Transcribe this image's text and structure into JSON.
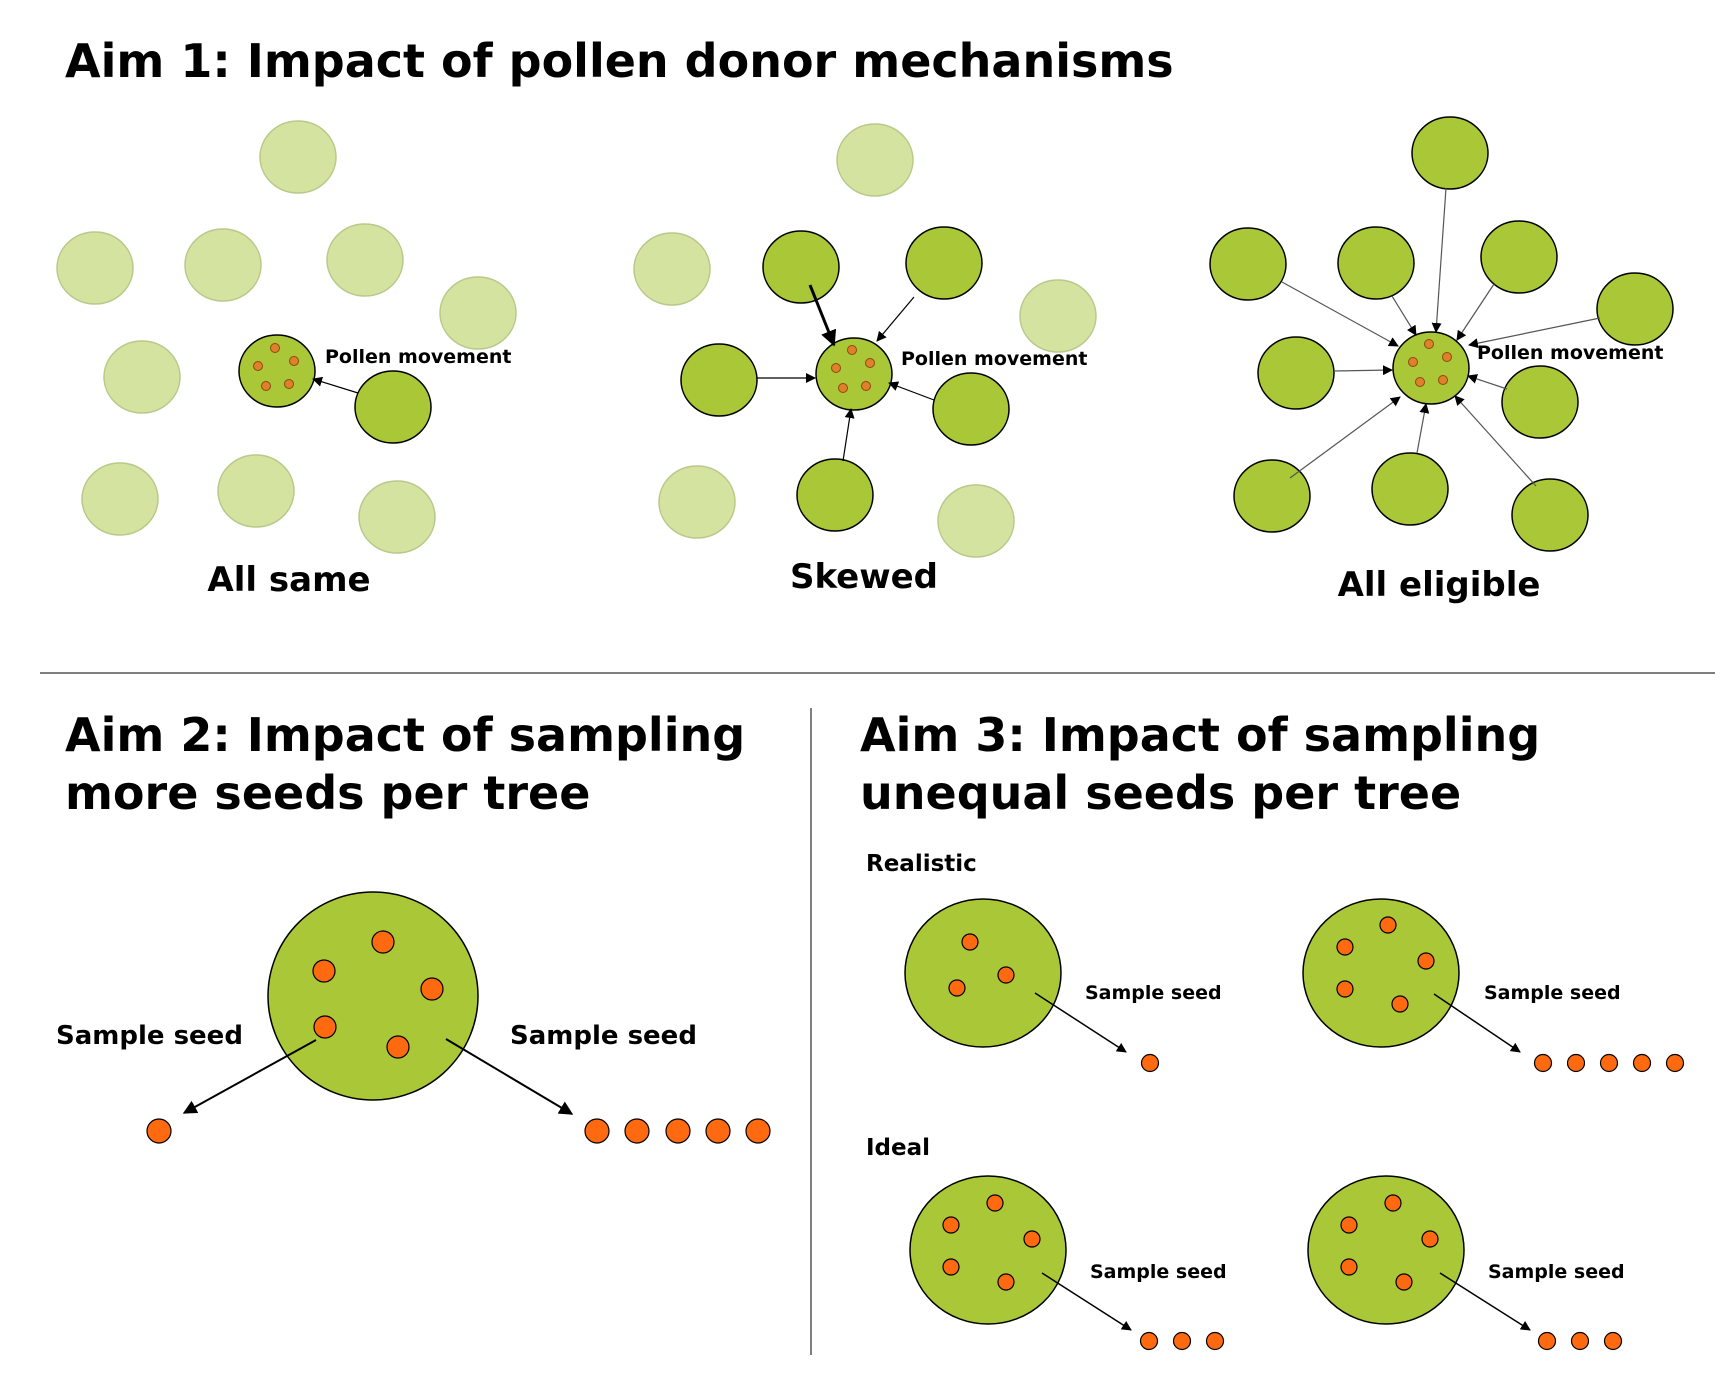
{
  "aim1": {
    "title": "Aim 1: Impact of pollen donor mechanisms",
    "pollen_label": "Pollen movement",
    "panels": [
      {
        "label": "All same"
      },
      {
        "label": "Skewed"
      },
      {
        "label": "All eligible"
      }
    ]
  },
  "aim2": {
    "title_line1": "Aim 2: Impact of sampling",
    "title_line2": "more seeds per tree",
    "left_label": "Sample seed",
    "right_label": "Sample seed"
  },
  "aim3": {
    "title_line1": "Aim 3: Impact of sampling",
    "title_line2": "unequal seeds per tree",
    "realistic_label": "Realistic",
    "ideal_label": "Ideal",
    "sample_label": "Sample seed"
  },
  "colors": {
    "tree": "#a9c737",
    "tree_faded": "#d5e3a0",
    "seed": "#ff6a10",
    "seed_small": "#e0802a",
    "divider": "#555555"
  }
}
